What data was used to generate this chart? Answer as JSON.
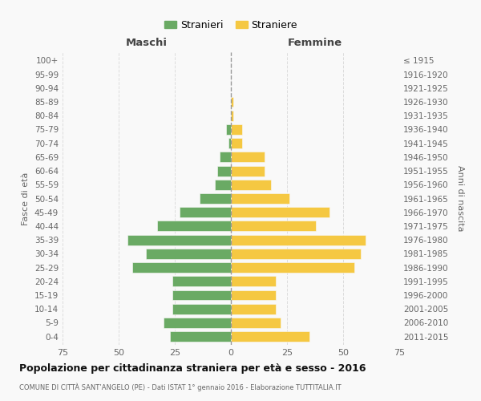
{
  "age_groups": [
    "0-4",
    "5-9",
    "10-14",
    "15-19",
    "20-24",
    "25-29",
    "30-34",
    "35-39",
    "40-44",
    "45-49",
    "50-54",
    "55-59",
    "60-64",
    "65-69",
    "70-74",
    "75-79",
    "80-84",
    "85-89",
    "90-94",
    "95-99",
    "100+"
  ],
  "birth_years": [
    "2011-2015",
    "2006-2010",
    "2001-2005",
    "1996-2000",
    "1991-1995",
    "1986-1990",
    "1981-1985",
    "1976-1980",
    "1971-1975",
    "1966-1970",
    "1961-1965",
    "1956-1960",
    "1951-1955",
    "1946-1950",
    "1941-1945",
    "1936-1940",
    "1931-1935",
    "1926-1930",
    "1921-1925",
    "1916-1920",
    "≤ 1915"
  ],
  "maschi": [
    27,
    30,
    26,
    26,
    26,
    44,
    38,
    46,
    33,
    23,
    14,
    7,
    6,
    5,
    1,
    2,
    0,
    0,
    0,
    0,
    0
  ],
  "femmine": [
    35,
    22,
    20,
    20,
    20,
    55,
    58,
    60,
    38,
    44,
    26,
    18,
    15,
    15,
    5,
    5,
    1,
    1,
    0,
    0,
    0
  ],
  "color_maschi": "#6aaa64",
  "color_femmine": "#f5c842",
  "title": "Popolazione per cittadinanza straniera per età e sesso - 2016",
  "subtitle": "COMUNE DI CITTÀ SANT’ANGELO (PE) - Dati ISTAT 1° gennaio 2016 - Elaborazione TUTTITALIA.IT",
  "xlabel_left": "Maschi",
  "xlabel_right": "Femmine",
  "ylabel_left": "Fasce di età",
  "ylabel_right": "Anni di nascita",
  "legend_maschi": "Stranieri",
  "legend_femmine": "Straniere",
  "xlim": 75,
  "bg_color": "#f9f9f9",
  "grid_color": "#dddddd",
  "bar_height": 0.75
}
